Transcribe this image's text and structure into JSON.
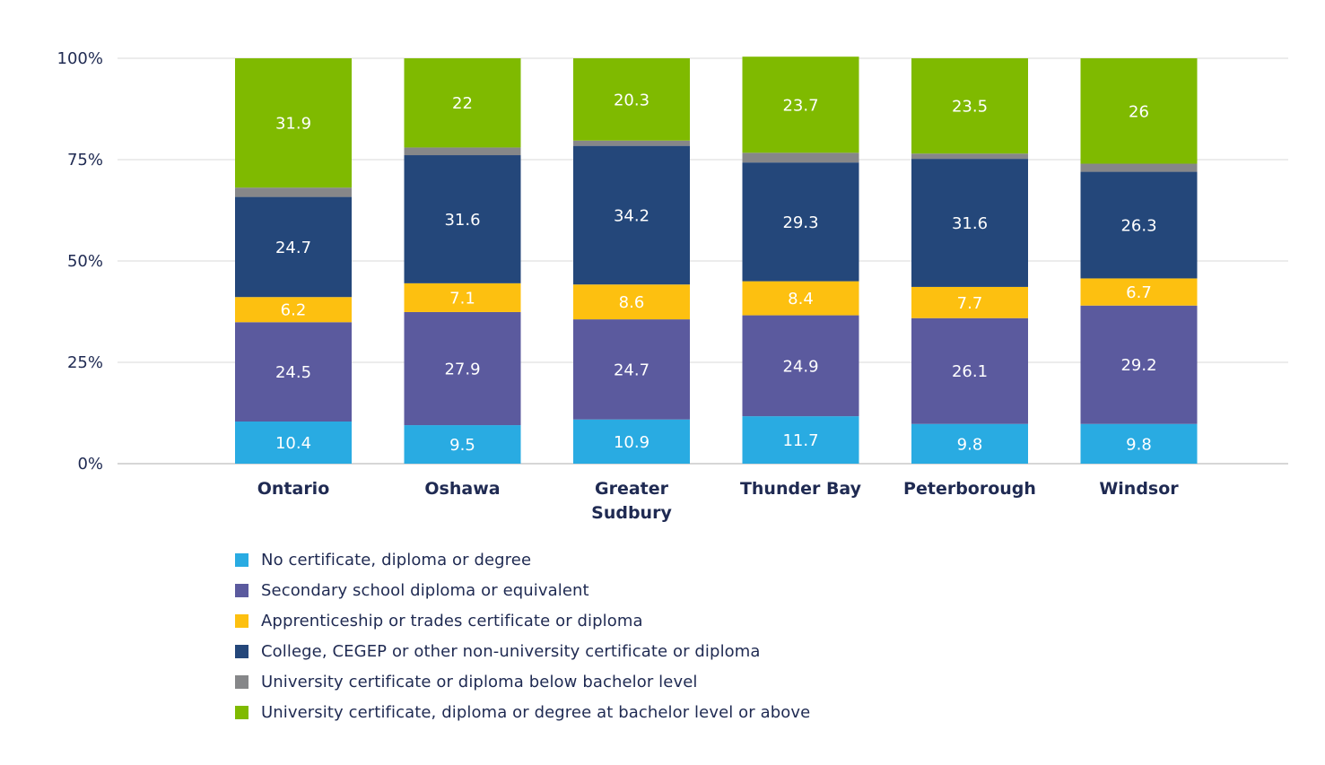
{
  "chart_data": {
    "type": "bar",
    "stacked": true,
    "categories": [
      "Ontario",
      "Oshawa",
      "Greater Sudbury",
      "Thunder Bay",
      "Peterborough",
      "Windsor"
    ],
    "category_lines": [
      [
        "Ontario"
      ],
      [
        "Oshawa"
      ],
      [
        "Greater",
        "Sudbury"
      ],
      [
        "Thunder Bay"
      ],
      [
        "Peterborough"
      ],
      [
        "Windsor"
      ]
    ],
    "series": [
      {
        "name": "No certificate, diploma or degree",
        "color": "#29abe2",
        "values": [
          10.4,
          9.5,
          10.9,
          11.7,
          9.8,
          9.8
        ],
        "labeled": true
      },
      {
        "name": "Secondary school diploma or equivalent",
        "color": "#5b5a9e",
        "values": [
          24.5,
          27.9,
          24.7,
          24.9,
          26.1,
          29.2
        ],
        "labeled": true
      },
      {
        "name": "Apprenticeship or trades certificate or diploma",
        "color": "#fdc010",
        "values": [
          6.2,
          7.1,
          8.6,
          8.4,
          7.7,
          6.7
        ],
        "labeled": true
      },
      {
        "name": "College, CEGEP or other non-university certificate or diploma",
        "color": "#24477a",
        "values": [
          24.7,
          31.6,
          34.2,
          29.3,
          31.6,
          26.3
        ],
        "labeled": true
      },
      {
        "name": "University certificate or diploma below bachelor level",
        "color": "#868789",
        "values": [
          2.3,
          1.9,
          1.3,
          2.4,
          1.3,
          2.0
        ],
        "labeled": false
      },
      {
        "name": "University certificate, diploma or degree at bachelor level or above",
        "color": "#7fba00",
        "values": [
          31.9,
          22,
          20.3,
          23.7,
          23.5,
          26
        ],
        "labeled": true
      }
    ],
    "yticks": [
      "0%",
      "25%",
      "50%",
      "75%",
      "100%"
    ],
    "ylim": [
      0,
      100
    ],
    "grid": true,
    "legend_position": "bottom-left",
    "title": "",
    "xlabel": "",
    "ylabel": ""
  }
}
